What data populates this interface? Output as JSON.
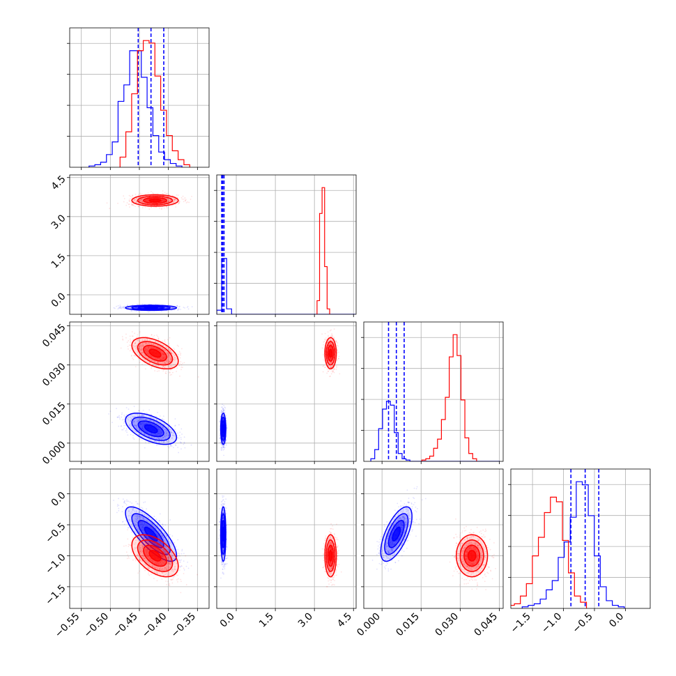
{
  "chart_data": {
    "type": "corner",
    "title": "",
    "grid": true,
    "colors": {
      "blue": "#0000ff",
      "red": "#ff0000"
    },
    "parameters": [
      {
        "range": [
          -0.57,
          -0.33
        ],
        "ticks": [
          -0.55,
          -0.5,
          -0.45,
          -0.4,
          -0.35
        ],
        "tick_labels": [
          "−0.55",
          "−0.50",
          "−0.45",
          "−0.40",
          "−0.35"
        ]
      },
      {
        "range": [
          -0.75,
          4.6
        ],
        "ticks": [
          0.0,
          1.5,
          3.0,
          4.5
        ],
        "tick_labels": [
          "0.0",
          "1.5",
          "3.0",
          "4.5"
        ]
      },
      {
        "range": [
          -0.007,
          0.0465
        ],
        "ticks": [
          0.0,
          0.015,
          0.03,
          0.045
        ],
        "tick_labels": [
          "0.000",
          "0.015",
          "0.030",
          "0.045"
        ]
      },
      {
        "range": [
          -1.85,
          0.4
        ],
        "ticks": [
          -1.5,
          -1.0,
          -0.5,
          0.0
        ],
        "tick_labels": [
          "−1.5",
          "−1.0",
          "−0.5",
          "0.0"
        ]
      }
    ],
    "series": [
      {
        "color": "blue",
        "mean": [
          -0.43,
          -0.5,
          0.0055,
          -0.65
        ],
        "sd": [
          0.022,
          0.05,
          0.003,
          0.22
        ],
        "corr": [
          [
            1,
            0.0,
            -0.55,
            -0.78
          ],
          [
            0.0,
            1,
            0.0,
            0.0
          ],
          [
            -0.55,
            0.0,
            1,
            0.65
          ],
          [
            -0.78,
            0.0,
            0.65,
            1
          ]
        ],
        "quantiles": [
          [
            -0.452,
            -0.43,
            -0.408
          ],
          [
            -0.56,
            -0.52,
            -0.47
          ],
          [
            0.0025,
            0.0055,
            0.0085
          ],
          [
            -0.88,
            -0.65,
            -0.43
          ]
        ],
        "histograms": [
          {
            "x0": -0.5367,
            "dx": 0.01,
            "counts": [
              1,
              2,
              4,
              10,
              20,
              52,
              65,
              92,
              92,
              71,
              47,
              25,
              12,
              6,
              3,
              1
            ]
          },
          {
            "x0": -0.75,
            "dx": 0.19,
            "counts": [
              3,
              41,
              4,
              0,
              0,
              0,
              0,
              0,
              0,
              0,
              0,
              0,
              0,
              0,
              0,
              0,
              0,
              0,
              0,
              0,
              0,
              0,
              0,
              0,
              0,
              0,
              0,
              0
            ]
          },
          {
            "x0": -0.0043,
            "dx": 0.0015,
            "counts": [
              2,
              9,
              25,
              40,
              46,
              43,
              22,
              6,
              2,
              1,
              0,
              0,
              0,
              0,
              0,
              0,
              0,
              0,
              0,
              0,
              0,
              0,
              0,
              0,
              0,
              0,
              0,
              0,
              0,
              0,
              0,
              0,
              0
            ]
          },
          {
            "x0": -1.667,
            "dx": 0.097,
            "counts": [
              1,
              2,
              3,
              6,
              12,
              18,
              33,
              43,
              59,
              82,
              80,
              60,
              34,
              14,
              5,
              2,
              1
            ]
          }
        ]
      },
      {
        "color": "red",
        "mean": [
          -0.423,
          3.62,
          0.0345,
          -1.0
        ],
        "sd": [
          0.02,
          0.11,
          0.003,
          0.17
        ],
        "corr": [
          [
            1,
            0.0,
            -0.5,
            -0.5
          ],
          [
            0.0,
            1,
            0.0,
            0.0
          ],
          [
            -0.5,
            0.0,
            1,
            0.0
          ],
          [
            -0.5,
            0.0,
            0.0,
            1
          ]
        ],
        "quantiles": [],
        "histograms": [
          {
            "x0": -0.4833,
            "dx": 0.01,
            "counts": [
              8,
              28,
              58,
              92,
              100,
              98,
              72,
              45,
              25,
              13,
              6,
              2
            ]
          },
          {
            "x0": 3.1,
            "dx": 0.0967,
            "counts": [
              10,
              74,
              93,
              35,
              4
            ]
          },
          {
            "x0": 0.0153,
            "dx": 0.0015,
            "counts": [
              1,
              2,
              4,
              10,
              17,
              32,
              49,
              80,
              97,
              81,
              47,
              18,
              6,
              2
            ]
          },
          {
            "x0": -1.89,
            "dx": 0.097,
            "counts": [
              2,
              3,
              8,
              16,
              34,
              46,
              62,
              72,
              69,
              44,
              23,
              8,
              4
            ]
          }
        ]
      }
    ]
  }
}
